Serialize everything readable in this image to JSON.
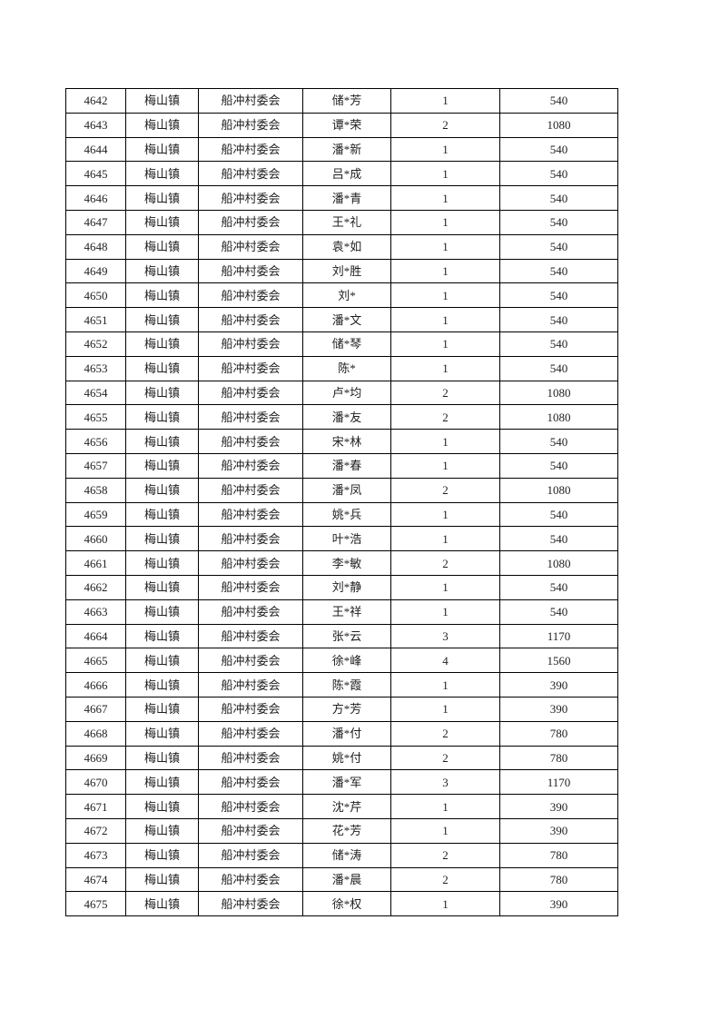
{
  "style": {
    "page_background": "#ffffff",
    "border_color": "#000000",
    "text_color": "#1f1f1f"
  },
  "table": {
    "rows": [
      [
        "4642",
        "梅山镇",
        "船冲村委会",
        "储*芳",
        "1",
        "540"
      ],
      [
        "4643",
        "梅山镇",
        "船冲村委会",
        "谭*荣",
        "2",
        "1080"
      ],
      [
        "4644",
        "梅山镇",
        "船冲村委会",
        "潘*新",
        "1",
        "540"
      ],
      [
        "4645",
        "梅山镇",
        "船冲村委会",
        "吕*成",
        "1",
        "540"
      ],
      [
        "4646",
        "梅山镇",
        "船冲村委会",
        "潘*青",
        "1",
        "540"
      ],
      [
        "4647",
        "梅山镇",
        "船冲村委会",
        "王*礼",
        "1",
        "540"
      ],
      [
        "4648",
        "梅山镇",
        "船冲村委会",
        "袁*如",
        "1",
        "540"
      ],
      [
        "4649",
        "梅山镇",
        "船冲村委会",
        "刘*胜",
        "1",
        "540"
      ],
      [
        "4650",
        "梅山镇",
        "船冲村委会",
        "刘*",
        "1",
        "540"
      ],
      [
        "4651",
        "梅山镇",
        "船冲村委会",
        "潘*文",
        "1",
        "540"
      ],
      [
        "4652",
        "梅山镇",
        "船冲村委会",
        "储*琴",
        "1",
        "540"
      ],
      [
        "4653",
        "梅山镇",
        "船冲村委会",
        "陈*",
        "1",
        "540"
      ],
      [
        "4654",
        "梅山镇",
        "船冲村委会",
        "卢*均",
        "2",
        "1080"
      ],
      [
        "4655",
        "梅山镇",
        "船冲村委会",
        "潘*友",
        "2",
        "1080"
      ],
      [
        "4656",
        "梅山镇",
        "船冲村委会",
        "宋*林",
        "1",
        "540"
      ],
      [
        "4657",
        "梅山镇",
        "船冲村委会",
        "潘*春",
        "1",
        "540"
      ],
      [
        "4658",
        "梅山镇",
        "船冲村委会",
        "潘*凤",
        "2",
        "1080"
      ],
      [
        "4659",
        "梅山镇",
        "船冲村委会",
        "姚*兵",
        "1",
        "540"
      ],
      [
        "4660",
        "梅山镇",
        "船冲村委会",
        "叶*浩",
        "1",
        "540"
      ],
      [
        "4661",
        "梅山镇",
        "船冲村委会",
        "李*敏",
        "2",
        "1080"
      ],
      [
        "4662",
        "梅山镇",
        "船冲村委会",
        "刘*静",
        "1",
        "540"
      ],
      [
        "4663",
        "梅山镇",
        "船冲村委会",
        "王*祥",
        "1",
        "540"
      ],
      [
        "4664",
        "梅山镇",
        "船冲村委会",
        "张*云",
        "3",
        "1170"
      ],
      [
        "4665",
        "梅山镇",
        "船冲村委会",
        "徐*峰",
        "4",
        "1560"
      ],
      [
        "4666",
        "梅山镇",
        "船冲村委会",
        "陈*霞",
        "1",
        "390"
      ],
      [
        "4667",
        "梅山镇",
        "船冲村委会",
        "方*芳",
        "1",
        "390"
      ],
      [
        "4668",
        "梅山镇",
        "船冲村委会",
        "潘*付",
        "2",
        "780"
      ],
      [
        "4669",
        "梅山镇",
        "船冲村委会",
        "姚*付",
        "2",
        "780"
      ],
      [
        "4670",
        "梅山镇",
        "船冲村委会",
        "潘*军",
        "3",
        "1170"
      ],
      [
        "4671",
        "梅山镇",
        "船冲村委会",
        "沈*芹",
        "1",
        "390"
      ],
      [
        "4672",
        "梅山镇",
        "船冲村委会",
        "花*芳",
        "1",
        "390"
      ],
      [
        "4673",
        "梅山镇",
        "船冲村委会",
        "储*涛",
        "2",
        "780"
      ],
      [
        "4674",
        "梅山镇",
        "船冲村委会",
        "潘*晨",
        "2",
        "780"
      ],
      [
        "4675",
        "梅山镇",
        "船冲村委会",
        "徐*权",
        "1",
        "390"
      ]
    ]
  }
}
